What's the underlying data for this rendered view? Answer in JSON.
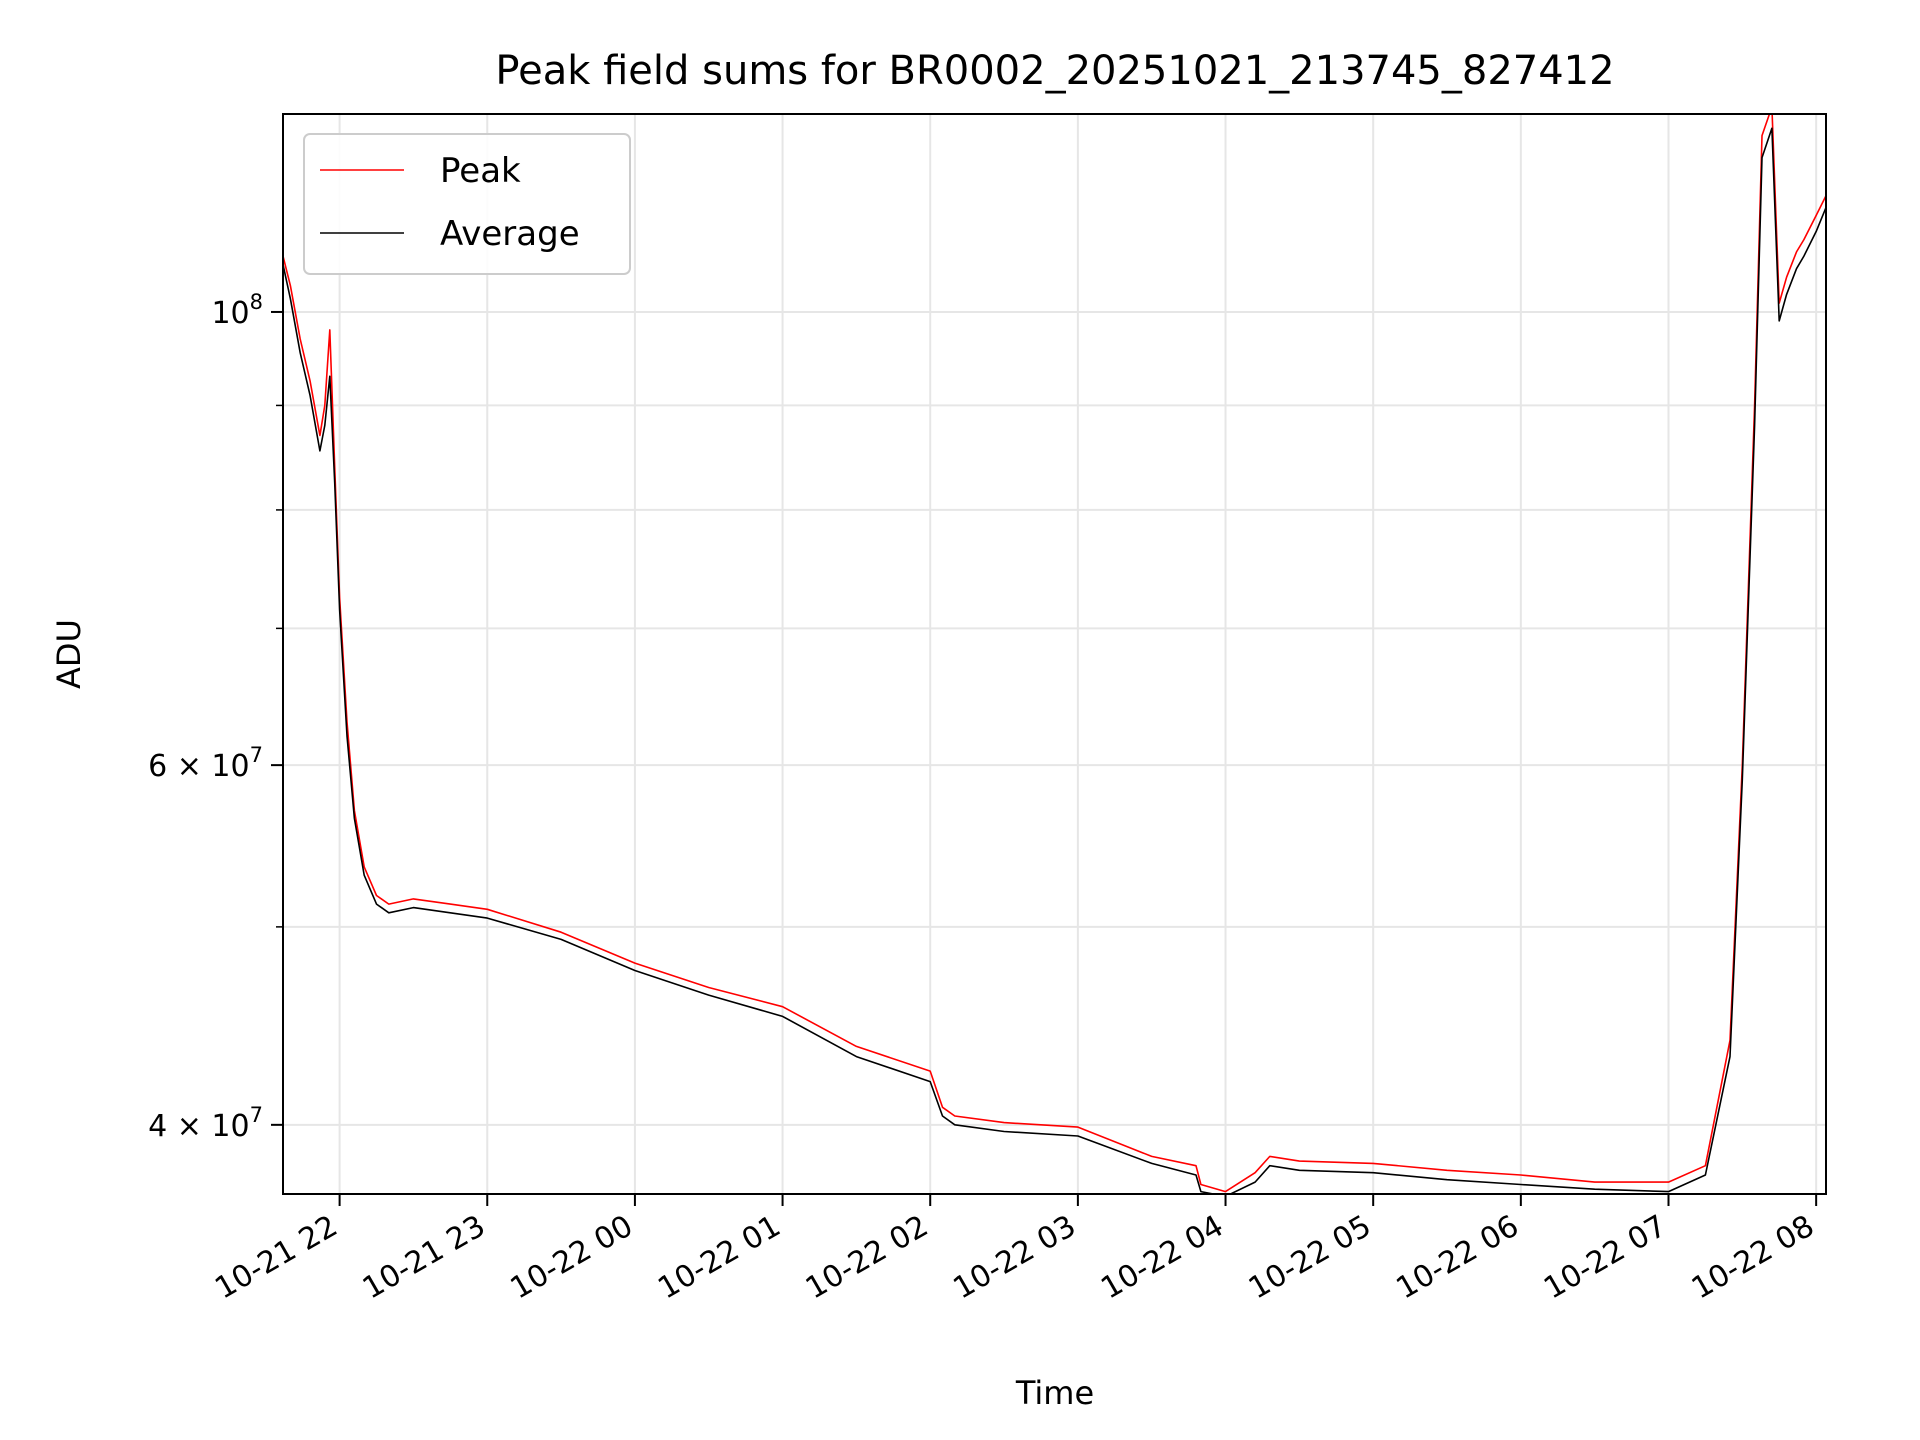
{
  "chart_data": {
    "type": "line",
    "title": "Peak field sums for BR0002_20251021_213745_827412",
    "xlabel": "Time",
    "ylabel": "ADU",
    "yscale": "log",
    "xlim": [
      "2025-10-21 21:37",
      "2025-10-22 08:04"
    ],
    "ylim": [
      37000000,
      125000000
    ],
    "grid": true,
    "legend_position": "top-left",
    "x_ticks": [
      {
        "value": "2025-10-21 22:00",
        "label": "10-21 22"
      },
      {
        "value": "2025-10-21 23:00",
        "label": "10-21 23"
      },
      {
        "value": "2025-10-22 00:00",
        "label": "10-22 00"
      },
      {
        "value": "2025-10-22 01:00",
        "label": "10-22 01"
      },
      {
        "value": "2025-10-22 02:00",
        "label": "10-22 02"
      },
      {
        "value": "2025-10-22 03:00",
        "label": "10-22 03"
      },
      {
        "value": "2025-10-22 04:00",
        "label": "10-22 04"
      },
      {
        "value": "2025-10-22 05:00",
        "label": "10-22 05"
      },
      {
        "value": "2025-10-22 06:00",
        "label": "10-22 06"
      },
      {
        "value": "2025-10-22 07:00",
        "label": "10-22 07"
      },
      {
        "value": "2025-10-22 08:00",
        "label": "10-22 08"
      }
    ],
    "y_ticks_major": [
      {
        "value": 40000000,
        "base": "4 × 10",
        "exp": "7"
      },
      {
        "value": 60000000,
        "base": "6 × 10",
        "exp": "7"
      },
      {
        "value": 100000000,
        "base": "10",
        "exp": "8"
      }
    ],
    "y_ticks_minor": [
      50000000,
      70000000,
      80000000,
      90000000
    ],
    "series": [
      {
        "name": "Peak",
        "color": "#ff0000",
        "x": [
          "2025-10-21 21:37",
          "2025-10-21 21:40",
          "2025-10-21 21:44",
          "2025-10-21 21:48",
          "2025-10-21 21:52",
          "2025-10-21 21:54",
          "2025-10-21 21:56",
          "2025-10-21 21:58",
          "2025-10-21 22:00",
          "2025-10-21 22:03",
          "2025-10-21 22:06",
          "2025-10-21 22:10",
          "2025-10-21 22:15",
          "2025-10-21 22:20",
          "2025-10-21 22:30",
          "2025-10-21 22:45",
          "2025-10-21 23:00",
          "2025-10-21 23:30",
          "2025-10-22 00:00",
          "2025-10-22 00:30",
          "2025-10-22 01:00",
          "2025-10-22 01:30",
          "2025-10-22 02:00",
          "2025-10-22 02:05",
          "2025-10-22 02:10",
          "2025-10-22 02:30",
          "2025-10-22 03:00",
          "2025-10-22 03:30",
          "2025-10-22 03:48",
          "2025-10-22 03:50",
          "2025-10-22 04:00",
          "2025-10-22 04:12",
          "2025-10-22 04:18",
          "2025-10-22 04:30",
          "2025-10-22 05:00",
          "2025-10-22 05:30",
          "2025-10-22 06:00",
          "2025-10-22 06:30",
          "2025-10-22 07:00",
          "2025-10-22 07:15",
          "2025-10-22 07:25",
          "2025-10-22 07:30",
          "2025-10-22 07:35",
          "2025-10-22 07:38",
          "2025-10-22 07:42",
          "2025-10-22 07:45",
          "2025-10-22 07:48",
          "2025-10-22 07:52",
          "2025-10-22 07:55",
          "2025-10-22 08:00",
          "2025-10-22 08:04"
        ],
        "values": [
          106500000,
          103000000,
          97000000,
          92500000,
          87000000,
          90000000,
          98000000,
          84000000,
          72500000,
          63000000,
          57000000,
          53500000,
          51800000,
          51300000,
          51600000,
          51300000,
          51000000,
          49700000,
          48000000,
          46700000,
          45700000,
          43700000,
          42500000,
          40800000,
          40400000,
          40100000,
          39900000,
          38600000,
          38200000,
          37400000,
          37100000,
          37900000,
          38600000,
          38400000,
          38300000,
          38000000,
          37800000,
          37500000,
          37500000,
          38200000,
          44000000,
          60000000,
          90000000,
          122000000,
          126000000,
          101000000,
          104000000,
          107000000,
          108500000,
          111500000,
          114000000
        ]
      },
      {
        "name": "Average",
        "color": "#000000",
        "x": [
          "2025-10-21 21:37",
          "2025-10-21 21:40",
          "2025-10-21 21:44",
          "2025-10-21 21:48",
          "2025-10-21 21:52",
          "2025-10-21 21:54",
          "2025-10-21 21:56",
          "2025-10-21 21:58",
          "2025-10-21 22:00",
          "2025-10-21 22:03",
          "2025-10-21 22:06",
          "2025-10-21 22:10",
          "2025-10-21 22:15",
          "2025-10-21 22:20",
          "2025-10-21 22:30",
          "2025-10-21 22:45",
          "2025-10-21 23:00",
          "2025-10-21 23:30",
          "2025-10-22 00:00",
          "2025-10-22 00:30",
          "2025-10-22 01:00",
          "2025-10-22 01:30",
          "2025-10-22 02:00",
          "2025-10-22 02:05",
          "2025-10-22 02:10",
          "2025-10-22 02:30",
          "2025-10-22 03:00",
          "2025-10-22 03:30",
          "2025-10-22 03:48",
          "2025-10-22 03:50",
          "2025-10-22 04:00",
          "2025-10-22 04:12",
          "2025-10-22 04:18",
          "2025-10-22 04:30",
          "2025-10-22 05:00",
          "2025-10-22 05:30",
          "2025-10-22 06:00",
          "2025-10-22 06:30",
          "2025-10-22 07:00",
          "2025-10-22 07:15",
          "2025-10-22 07:25",
          "2025-10-22 07:30",
          "2025-10-22 07:35",
          "2025-10-22 07:38",
          "2025-10-22 07:42",
          "2025-10-22 07:45",
          "2025-10-22 07:48",
          "2025-10-22 07:52",
          "2025-10-22 07:55",
          "2025-10-22 08:00",
          "2025-10-22 08:04"
        ],
        "values": [
          105500000,
          101500000,
          95500000,
          91000000,
          85500000,
          88000000,
          93000000,
          82500000,
          71500000,
          62000000,
          56500000,
          53000000,
          51300000,
          50800000,
          51100000,
          50800000,
          50500000,
          49300000,
          47600000,
          46300000,
          45200000,
          43200000,
          42000000,
          40400000,
          40000000,
          39700000,
          39500000,
          38300000,
          37800000,
          37100000,
          36900000,
          37500000,
          38200000,
          38000000,
          37900000,
          37600000,
          37400000,
          37200000,
          37100000,
          37800000,
          43200000,
          59000000,
          88000000,
          119000000,
          123000000,
          99000000,
          102000000,
          105000000,
          106500000,
          109500000,
          112500000
        ]
      }
    ]
  }
}
